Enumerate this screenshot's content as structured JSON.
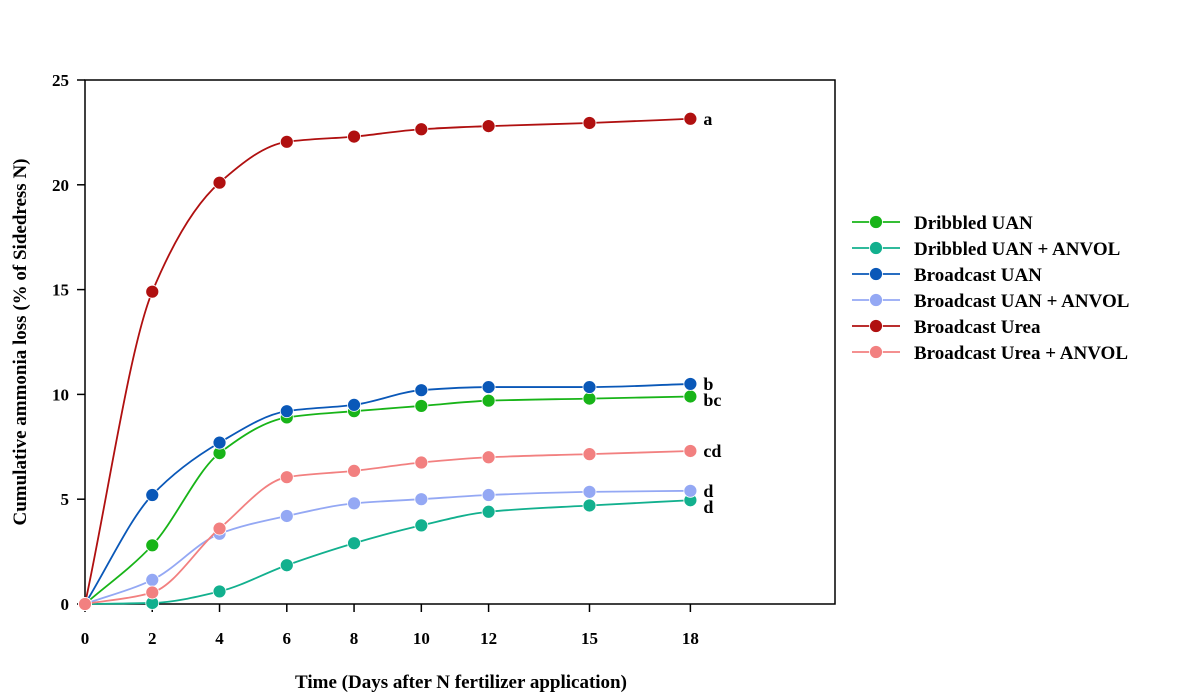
{
  "chart_data": {
    "type": "line",
    "xlabel": "Time (Days after N fertilizer application)",
    "ylabel": "Cumulative ammonia loss (% of Sidedress N)",
    "x_ticks": [
      0,
      2,
      4,
      6,
      8,
      10,
      12,
      15,
      18
    ],
    "y_ticks": [
      0,
      5,
      10,
      15,
      20,
      25
    ],
    "ylim": [
      0,
      25
    ],
    "grid": false,
    "legend_position": "right",
    "series": [
      {
        "name": "Dribbled UAN",
        "color": "#18b418",
        "letter": "bc",
        "values": [
          0,
          2.8,
          7.2,
          8.9,
          9.2,
          9.45,
          9.7,
          9.8,
          9.9
        ]
      },
      {
        "name": "Dribbled UAN + ANVOL",
        "color": "#12b08e",
        "letter": "d",
        "values": [
          0,
          0.05,
          0.6,
          1.85,
          2.9,
          3.75,
          4.4,
          4.7,
          4.95
        ]
      },
      {
        "name": "Broadcast UAN",
        "color": "#0a58b8",
        "letter": "b",
        "values": [
          0,
          5.2,
          7.7,
          9.2,
          9.5,
          10.2,
          10.35,
          10.35,
          10.5
        ]
      },
      {
        "name": "Broadcast UAN + ANVOL",
        "color": "#94a8f4",
        "letter": "d",
        "values": [
          0,
          1.15,
          3.35,
          4.2,
          4.8,
          5.0,
          5.2,
          5.35,
          5.4
        ]
      },
      {
        "name": "Broadcast Urea",
        "color": "#b01010",
        "letter": "a",
        "values": [
          0,
          14.9,
          20.1,
          22.05,
          22.3,
          22.65,
          22.8,
          22.95,
          23.15
        ]
      },
      {
        "name": "Broadcast Urea + ANVOL",
        "color": "#f28080",
        "letter": "cd",
        "values": [
          0,
          0.55,
          3.6,
          6.05,
          6.35,
          6.75,
          7.0,
          7.15,
          7.3
        ]
      }
    ]
  }
}
